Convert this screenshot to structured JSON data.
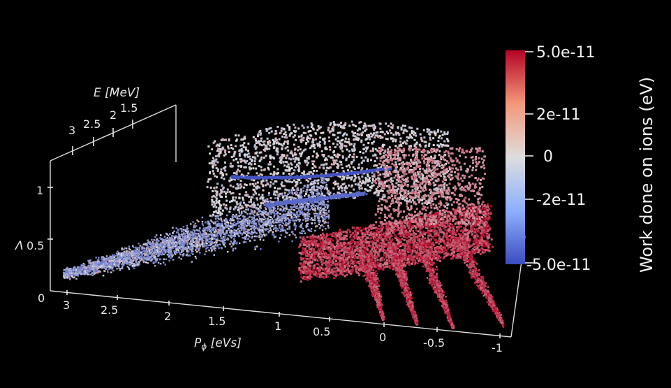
{
  "chart_data": {
    "type": "scatter",
    "view": "3d",
    "colormap": "coolwarm",
    "axes": {
      "p_phi": {
        "label": "P_ϕ [eVs]",
        "label_symbol": "P",
        "label_sub": "ϕ",
        "label_unit": " [eVs]",
        "ticks": [
          "3",
          "2.5",
          "2",
          "1.5",
          "1",
          "0.5",
          "0",
          "-0.5",
          "-1"
        ],
        "range": [
          3.2,
          -1
        ]
      },
      "lambda": {
        "label": "Λ",
        "ticks": [
          "0",
          "0.5",
          "1"
        ],
        "range": [
          0,
          1.2
        ]
      },
      "energy": {
        "label": "E [MeV]",
        "ticks": [
          "3",
          "2.5",
          "2",
          "1.5"
        ],
        "range": [
          3.3,
          1.2
        ]
      }
    },
    "colorbar": {
      "title": "Work done on ions (eV)",
      "ticks": [
        "5.0e-11",
        "2e-11",
        "0",
        "-2e-11",
        "-5.0e-11"
      ],
      "range": [
        -5e-11,
        5e-11
      ],
      "low_color": "#3b4cc0",
      "mid_color": "#dddddd",
      "high_color": "#b40426"
    }
  }
}
